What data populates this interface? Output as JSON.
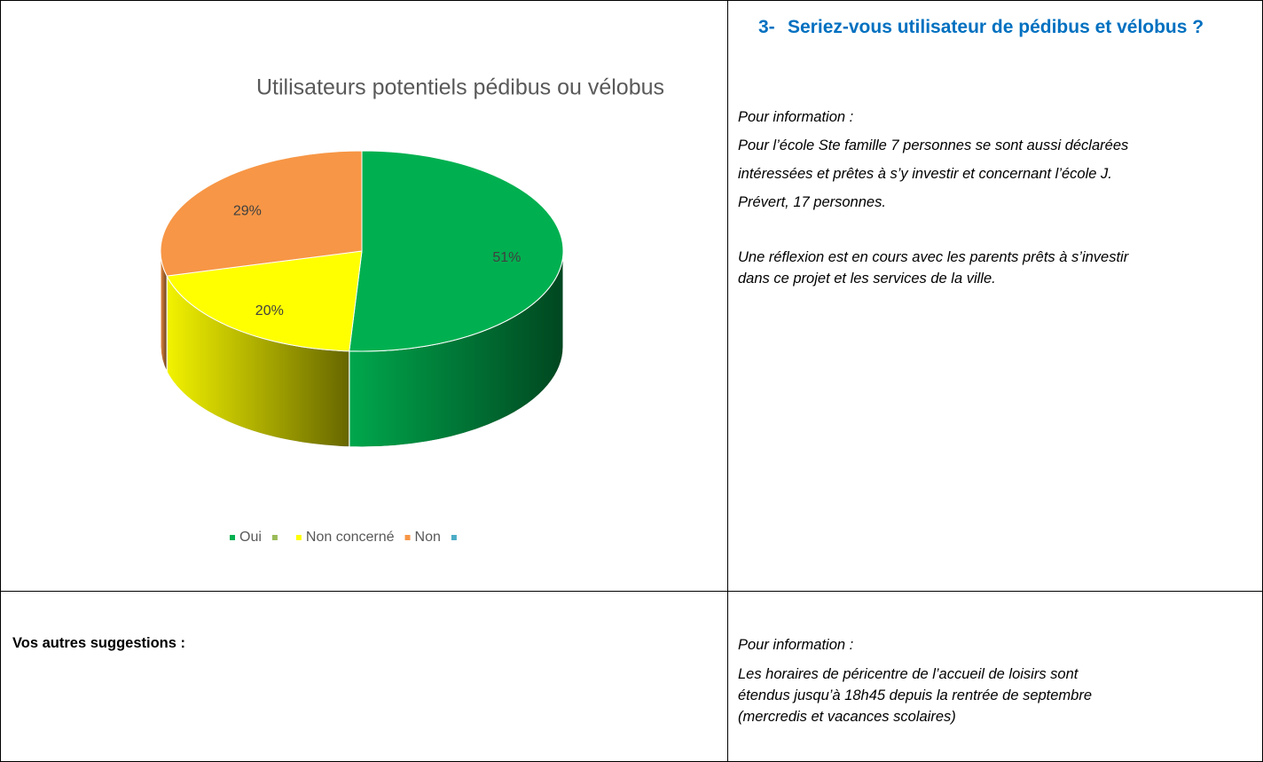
{
  "chart_data": {
    "type": "pie3d",
    "title": "Utilisateurs potentiels pédibus ou vélobus",
    "categories": [
      "Oui",
      null,
      "Non concerné",
      "Non",
      null
    ],
    "values": [
      51,
      null,
      20,
      29,
      null
    ],
    "value_labels": [
      "51%",
      null,
      "20%",
      "29%",
      null
    ],
    "colors": [
      "#00b050",
      "#9bbb59",
      "#ffff00",
      "#f79646",
      "#4bacc6"
    ],
    "legend": "bottom"
  },
  "question": {
    "number": "3-",
    "title": "Seriez-vous utilisateur de pédibus et vélobus ?",
    "info_label": "Pour information :",
    "paragraphs": [
      [
        "Pour l’école Ste famille 7 personnes se sont aussi déclarées",
        "intéressées et prêtes à s’y investir et concernant l’école J.",
        "Prévert, 17 personnes."
      ],
      [
        "Une réflexion est en cours avec les parents prêts à s’investir",
        "dans ce projet et les services de la ville."
      ]
    ]
  },
  "suggestions": {
    "label": "Vos autres suggestions :",
    "info_label": "Pour information :",
    "lines": [
      "Les horaires de péricentre de l’accueil de loisirs sont",
      "étendus jusqu’à 18h45 depuis la rentrée de septembre",
      "(mercredis et vacances scolaires)"
    ]
  }
}
